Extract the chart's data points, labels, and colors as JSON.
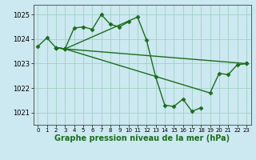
{
  "background_color": "#cce8f0",
  "grid_color": "#99ccbb",
  "line_color": "#1a6e1a",
  "marker": "D",
  "markersize": 2.5,
  "linewidth": 1.0,
  "xlabel": "Graphe pression niveau de la mer (hPa)",
  "xlabel_fontsize": 7,
  "ylim": [
    1020.5,
    1025.4
  ],
  "xlim": [
    -0.5,
    23.5
  ],
  "yticks": [
    1021,
    1022,
    1023,
    1024,
    1025
  ],
  "xticks": [
    0,
    1,
    2,
    3,
    4,
    5,
    6,
    7,
    8,
    9,
    10,
    11,
    12,
    13,
    14,
    15,
    16,
    17,
    18,
    19,
    20,
    21,
    22,
    23
  ],
  "series": [
    {
      "hours": [
        0,
        1,
        2,
        3,
        4,
        5,
        6,
        7,
        8,
        9,
        10
      ],
      "vals": [
        1023.7,
        1024.05,
        1023.65,
        1023.6,
        1024.45,
        1024.5,
        1024.4,
        1025.0,
        1024.6,
        1024.5,
        1024.7
      ]
    },
    {
      "hours": [
        2,
        3,
        11,
        12,
        13,
        14,
        15,
        16,
        17,
        18
      ],
      "vals": [
        1023.65,
        1023.6,
        1024.9,
        1023.95,
        1022.45,
        1021.3,
        1021.25,
        1021.55,
        1021.05,
        1021.2
      ]
    },
    {
      "hours": [
        2,
        3,
        19,
        20,
        21,
        22,
        23
      ],
      "vals": [
        1023.65,
        1023.6,
        1021.8,
        1022.6,
        1022.55,
        1022.95,
        1023.0
      ]
    },
    {
      "hours": [
        2,
        3,
        23
      ],
      "vals": [
        1023.65,
        1023.6,
        1023.0
      ]
    }
  ]
}
